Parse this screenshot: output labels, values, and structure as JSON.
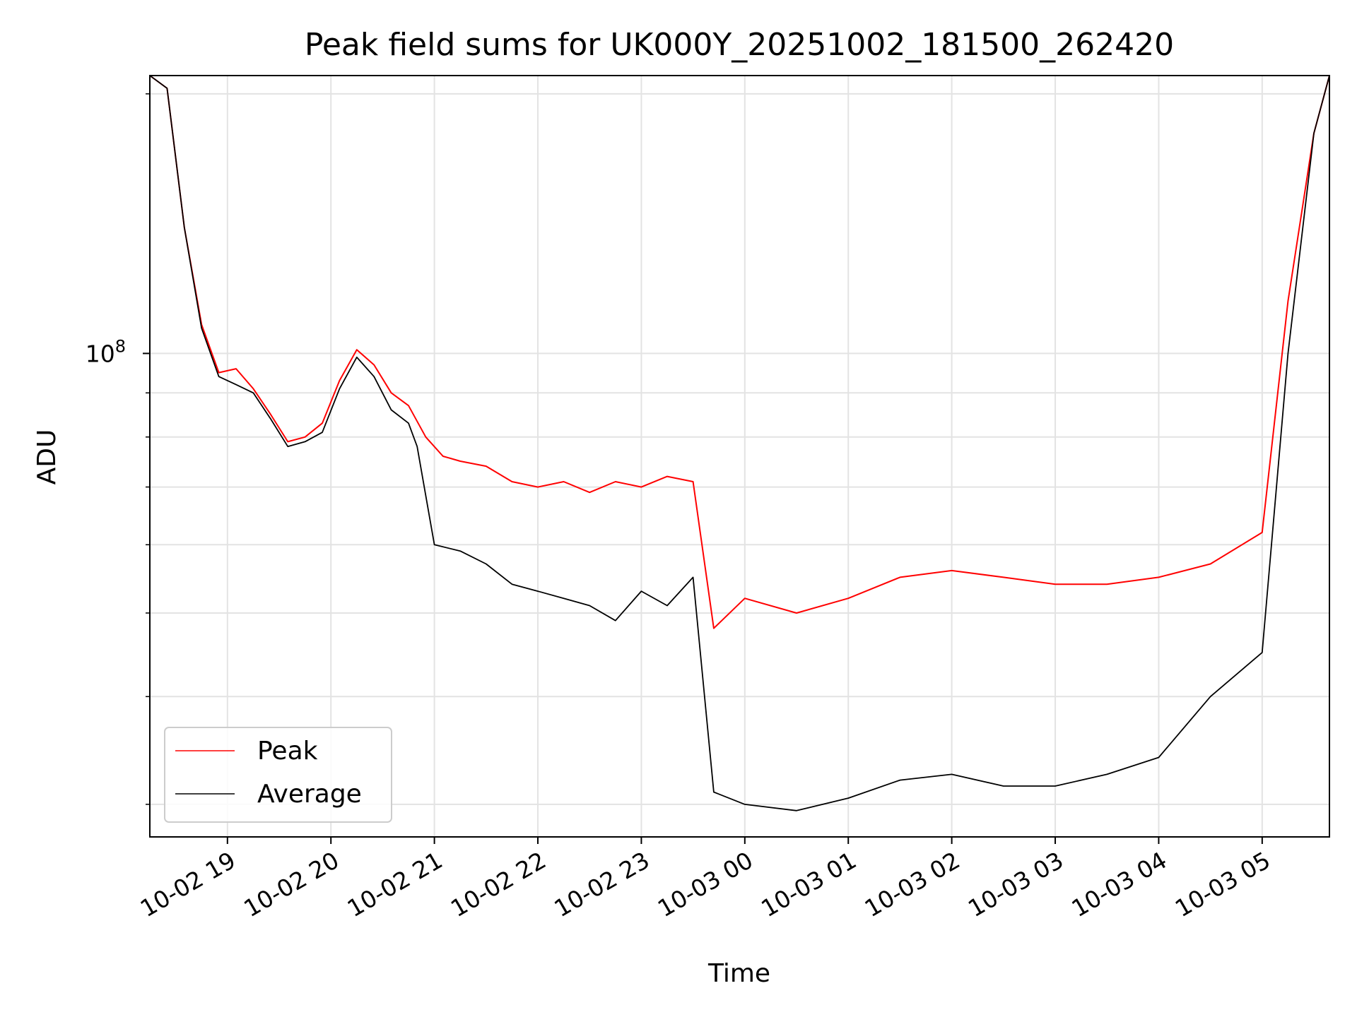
{
  "chart_data": {
    "type": "line",
    "title": "Peak field sums for UK000Y_20251002_181500_262420",
    "xlabel": "Time",
    "ylabel": "ADU",
    "yscale": "log",
    "ylim": [
      27500000,
      210000000
    ],
    "xlim": [
      "2025-10-02 18:15",
      "2025-10-03 05:39"
    ],
    "x_ticks": [
      "2025-10-02 19:00",
      "2025-10-02 20:00",
      "2025-10-02 21:00",
      "2025-10-02 22:00",
      "2025-10-02 23:00",
      "2025-10-03 00:00",
      "2025-10-03 01:00",
      "2025-10-03 02:00",
      "2025-10-03 03:00",
      "2025-10-03 04:00",
      "2025-10-03 05:00"
    ],
    "x_tick_labels": [
      "10-02 19",
      "10-02 20",
      "10-02 21",
      "10-02 22",
      "10-02 23",
      "10-03 00",
      "10-03 01",
      "10-03 02",
      "10-03 03",
      "10-03 04",
      "10-03 05"
    ],
    "y_major_tick_value": 100000000,
    "y_major_tick_label_base": "10",
    "y_major_tick_label_exp": "8",
    "y_minor_ticks": [
      30000000,
      40000000,
      50000000,
      60000000,
      70000000,
      80000000,
      90000000,
      200000000
    ],
    "grid": true,
    "legend_position": "lower-left",
    "series": [
      {
        "name": "Peak",
        "color": "#ff0000",
        "points": [
          [
            "2025-10-02 18:15",
            210000000
          ],
          [
            "2025-10-02 18:25",
            203000000
          ],
          [
            "2025-10-02 18:35",
            140000000
          ],
          [
            "2025-10-02 18:45",
            108000000
          ],
          [
            "2025-10-02 18:55",
            95000000
          ],
          [
            "2025-10-02 19:05",
            96000000
          ],
          [
            "2025-10-02 19:15",
            91000000
          ],
          [
            "2025-10-02 19:25",
            85000000
          ],
          [
            "2025-10-02 19:35",
            79000000
          ],
          [
            "2025-10-02 19:45",
            80000000
          ],
          [
            "2025-10-02 19:55",
            83000000
          ],
          [
            "2025-10-02 20:05",
            93000000
          ],
          [
            "2025-10-02 20:15",
            101000000
          ],
          [
            "2025-10-02 20:25",
            97000000
          ],
          [
            "2025-10-02 20:35",
            90000000
          ],
          [
            "2025-10-02 20:45",
            87000000
          ],
          [
            "2025-10-02 20:55",
            80000000
          ],
          [
            "2025-10-02 21:05",
            76000000
          ],
          [
            "2025-10-02 21:15",
            75000000
          ],
          [
            "2025-10-02 21:30",
            74000000
          ],
          [
            "2025-10-02 21:45",
            71000000
          ],
          [
            "2025-10-02 22:00",
            70000000
          ],
          [
            "2025-10-02 22:15",
            71000000
          ],
          [
            "2025-10-02 22:30",
            69000000
          ],
          [
            "2025-10-02 22:45",
            71000000
          ],
          [
            "2025-10-02 23:00",
            70000000
          ],
          [
            "2025-10-02 23:15",
            72000000
          ],
          [
            "2025-10-02 23:30",
            71000000
          ],
          [
            "2025-10-02 23:42",
            48000000
          ],
          [
            "2025-10-03 00:00",
            52000000
          ],
          [
            "2025-10-03 00:30",
            50000000
          ],
          [
            "2025-10-03 01:00",
            52000000
          ],
          [
            "2025-10-03 01:30",
            55000000
          ],
          [
            "2025-10-03 02:00",
            56000000
          ],
          [
            "2025-10-03 02:30",
            55000000
          ],
          [
            "2025-10-03 03:00",
            54000000
          ],
          [
            "2025-10-03 03:30",
            54000000
          ],
          [
            "2025-10-03 04:00",
            55000000
          ],
          [
            "2025-10-03 04:30",
            57000000
          ],
          [
            "2025-10-03 05:00",
            62000000
          ],
          [
            "2025-10-03 05:15",
            115000000
          ],
          [
            "2025-10-03 05:30",
            180000000
          ],
          [
            "2025-10-03 05:39",
            210000000
          ]
        ]
      },
      {
        "name": "Average",
        "color": "#000000",
        "points": [
          [
            "2025-10-02 18:15",
            210000000
          ],
          [
            "2025-10-02 18:25",
            203000000
          ],
          [
            "2025-10-02 18:35",
            140000000
          ],
          [
            "2025-10-02 18:45",
            107000000
          ],
          [
            "2025-10-02 18:55",
            94000000
          ],
          [
            "2025-10-02 19:05",
            92000000
          ],
          [
            "2025-10-02 19:15",
            90000000
          ],
          [
            "2025-10-02 19:25",
            84000000
          ],
          [
            "2025-10-02 19:35",
            78000000
          ],
          [
            "2025-10-02 19:45",
            79000000
          ],
          [
            "2025-10-02 19:55",
            81000000
          ],
          [
            "2025-10-02 20:05",
            91000000
          ],
          [
            "2025-10-02 20:15",
            99000000
          ],
          [
            "2025-10-02 20:25",
            94000000
          ],
          [
            "2025-10-02 20:35",
            86000000
          ],
          [
            "2025-10-02 20:45",
            83000000
          ],
          [
            "2025-10-02 20:50",
            78000000
          ],
          [
            "2025-10-02 21:00",
            60000000
          ],
          [
            "2025-10-02 21:15",
            59000000
          ],
          [
            "2025-10-02 21:30",
            57000000
          ],
          [
            "2025-10-02 21:45",
            54000000
          ],
          [
            "2025-10-02 22:00",
            53000000
          ],
          [
            "2025-10-02 22:15",
            52000000
          ],
          [
            "2025-10-02 22:30",
            51000000
          ],
          [
            "2025-10-02 22:45",
            49000000
          ],
          [
            "2025-10-02 23:00",
            53000000
          ],
          [
            "2025-10-02 23:15",
            51000000
          ],
          [
            "2025-10-02 23:30",
            55000000
          ],
          [
            "2025-10-02 23:42",
            31000000
          ],
          [
            "2025-10-03 00:00",
            30000000
          ],
          [
            "2025-10-03 00:30",
            29500000
          ],
          [
            "2025-10-03 01:00",
            30500000
          ],
          [
            "2025-10-03 01:30",
            32000000
          ],
          [
            "2025-10-03 02:00",
            32500000
          ],
          [
            "2025-10-03 02:30",
            31500000
          ],
          [
            "2025-10-03 03:00",
            31500000
          ],
          [
            "2025-10-03 03:30",
            32500000
          ],
          [
            "2025-10-03 04:00",
            34000000
          ],
          [
            "2025-10-03 04:30",
            40000000
          ],
          [
            "2025-10-03 05:00",
            45000000
          ],
          [
            "2025-10-03 05:15",
            100000000
          ],
          [
            "2025-10-03 05:30",
            180000000
          ],
          [
            "2025-10-03 05:39",
            210000000
          ]
        ]
      }
    ]
  }
}
